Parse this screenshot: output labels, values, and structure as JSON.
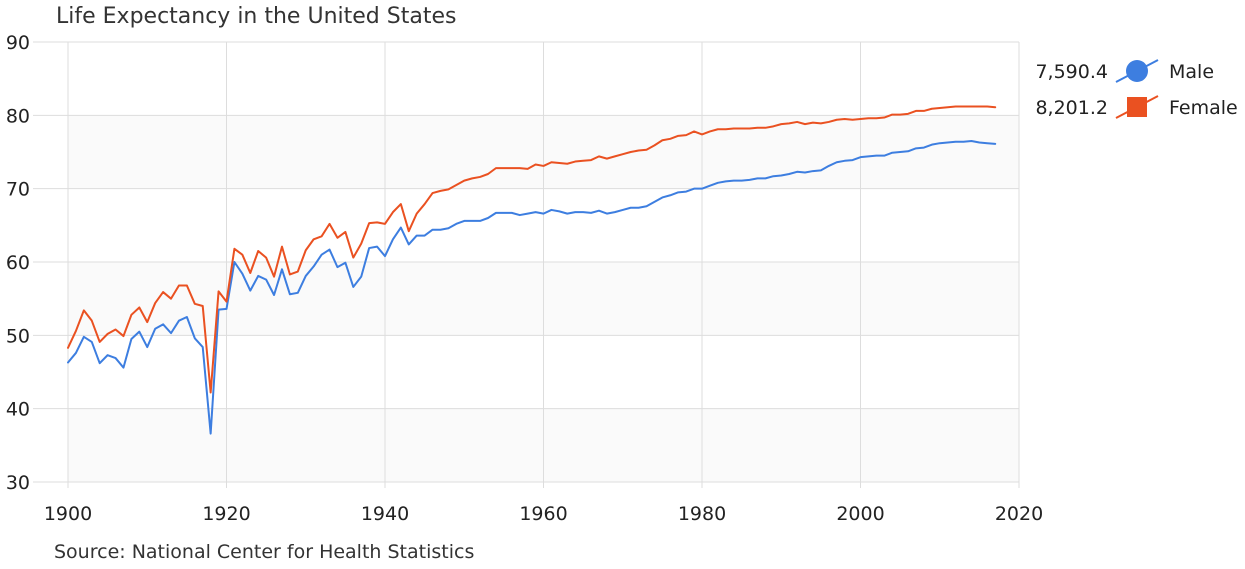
{
  "chart_data": {
    "type": "line",
    "title": "Life Expectancy in the United States",
    "source": "Source: National Center for Health Statistics",
    "xlabel": "",
    "ylabel": "",
    "xlim": [
      1900,
      2020
    ],
    "ylim": [
      30,
      90
    ],
    "x_ticks": [
      "1900",
      "1920",
      "1940",
      "1960",
      "1980",
      "2000",
      "2020"
    ],
    "y_ticks": [
      "30",
      "40",
      "50",
      "60",
      "70",
      "80",
      "90"
    ],
    "grid": true,
    "legend_position": "top-right",
    "x": [
      1900,
      1901,
      1902,
      1903,
      1904,
      1905,
      1906,
      1907,
      1908,
      1909,
      1910,
      1911,
      1912,
      1913,
      1914,
      1915,
      1916,
      1917,
      1918,
      1919,
      1920,
      1921,
      1922,
      1923,
      1924,
      1925,
      1926,
      1927,
      1928,
      1929,
      1930,
      1931,
      1932,
      1933,
      1934,
      1935,
      1936,
      1937,
      1938,
      1939,
      1940,
      1941,
      1942,
      1943,
      1944,
      1945,
      1946,
      1947,
      1948,
      1949,
      1950,
      1951,
      1952,
      1953,
      1954,
      1955,
      1956,
      1957,
      1958,
      1959,
      1960,
      1961,
      1962,
      1963,
      1964,
      1965,
      1966,
      1967,
      1968,
      1969,
      1970,
      1971,
      1972,
      1973,
      1974,
      1975,
      1976,
      1977,
      1978,
      1979,
      1980,
      1981,
      1982,
      1983,
      1984,
      1985,
      1986,
      1987,
      1988,
      1989,
      1990,
      1991,
      1992,
      1993,
      1994,
      1995,
      1996,
      1997,
      1998,
      1999,
      2000,
      2001,
      2002,
      2003,
      2004,
      2005,
      2006,
      2007,
      2008,
      2009,
      2010,
      2011,
      2012,
      2013,
      2014,
      2015,
      2016,
      2017
    ],
    "series": [
      {
        "name": "Male",
        "legend_value": "7,590.4",
        "color": "#3d7ee0",
        "marker": "circle",
        "values": [
          46.3,
          47.6,
          49.8,
          49.1,
          46.2,
          47.3,
          46.9,
          45.6,
          49.5,
          50.5,
          48.4,
          50.9,
          51.5,
          50.3,
          52.0,
          52.5,
          49.6,
          48.4,
          36.6,
          53.5,
          53.6,
          60.0,
          58.4,
          56.1,
          58.1,
          57.6,
          55.5,
          59.0,
          55.6,
          55.8,
          58.1,
          59.4,
          61.0,
          61.7,
          59.3,
          59.9,
          56.6,
          58.0,
          61.9,
          62.1,
          60.8,
          63.1,
          64.7,
          62.4,
          63.6,
          63.6,
          64.4,
          64.4,
          64.6,
          65.2,
          65.6,
          65.6,
          65.6,
          66.0,
          66.7,
          66.7,
          66.7,
          66.4,
          66.6,
          66.8,
          66.6,
          67.1,
          66.9,
          66.6,
          66.8,
          66.8,
          66.7,
          67.0,
          66.6,
          66.8,
          67.1,
          67.4,
          67.4,
          67.6,
          68.2,
          68.8,
          69.1,
          69.5,
          69.6,
          70.0,
          70.0,
          70.4,
          70.8,
          71.0,
          71.1,
          71.1,
          71.2,
          71.4,
          71.4,
          71.7,
          71.8,
          72.0,
          72.3,
          72.2,
          72.4,
          72.5,
          73.1,
          73.6,
          73.8,
          73.9,
          74.3,
          74.4,
          74.5,
          74.5,
          74.9,
          75.0,
          75.1,
          75.5,
          75.6,
          76.0,
          76.2,
          76.3,
          76.4,
          76.4,
          76.5,
          76.3,
          76.2,
          76.1
        ]
      },
      {
        "name": "Female",
        "legend_value": "8,201.2",
        "color": "#ea5121",
        "marker": "square",
        "values": [
          48.3,
          50.6,
          53.4,
          52.0,
          49.1,
          50.2,
          50.8,
          49.9,
          52.8,
          53.8,
          51.8,
          54.4,
          55.9,
          55.0,
          56.8,
          56.8,
          54.3,
          54.0,
          42.2,
          56.0,
          54.6,
          61.8,
          61.0,
          58.5,
          61.5,
          60.6,
          58.0,
          62.1,
          58.3,
          58.7,
          61.6,
          63.1,
          63.5,
          65.2,
          63.3,
          64.1,
          60.6,
          62.5,
          65.3,
          65.4,
          65.2,
          66.8,
          67.9,
          64.2,
          66.6,
          67.9,
          69.4,
          69.7,
          69.9,
          70.5,
          71.1,
          71.4,
          71.6,
          72.0,
          72.8,
          72.8,
          72.8,
          72.8,
          72.7,
          73.3,
          73.1,
          73.6,
          73.5,
          73.4,
          73.7,
          73.8,
          73.9,
          74.4,
          74.1,
          74.4,
          74.7,
          75.0,
          75.2,
          75.3,
          75.9,
          76.6,
          76.8,
          77.2,
          77.3,
          77.8,
          77.4,
          77.8,
          78.1,
          78.1,
          78.2,
          78.2,
          78.2,
          78.3,
          78.3,
          78.5,
          78.8,
          78.9,
          79.1,
          78.8,
          79.0,
          78.9,
          79.1,
          79.4,
          79.5,
          79.4,
          79.5,
          79.6,
          79.6,
          79.7,
          80.1,
          80.1,
          80.2,
          80.6,
          80.6,
          80.9,
          81.0,
          81.1,
          81.2,
          81.2,
          81.2,
          81.2,
          81.2,
          81.1
        ]
      }
    ]
  }
}
